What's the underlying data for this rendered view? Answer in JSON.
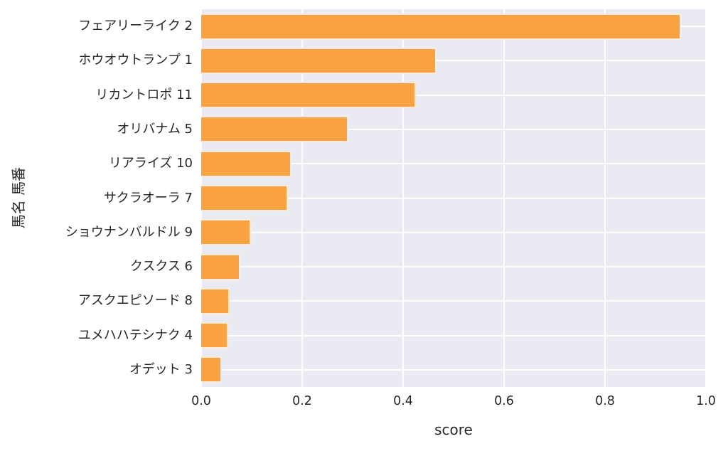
{
  "chart_data": {
    "type": "bar",
    "orientation": "horizontal",
    "title": "",
    "xlabel": "score",
    "ylabel": "馬名 馬番",
    "xlim": [
      0.0,
      1.0
    ],
    "xtick_labels": [
      "0.0",
      "0.2",
      "0.4",
      "0.6",
      "0.8",
      "1.0"
    ],
    "xticks": [
      0.0,
      0.2,
      0.4,
      0.6,
      0.8,
      1.0
    ],
    "categories": [
      "フェアリーライク 2",
      "ホウオウトランプ 1",
      "リカントロポ 11",
      "オリバナム 5",
      "リアライズ 10",
      "サクラオーラ 7",
      "ショウナンバルドル 9",
      "クスクス 6",
      "アスクエピソード 8",
      "ユメハハテシナク 4",
      "オデット 3"
    ],
    "values": [
      0.95,
      0.466,
      0.425,
      0.291,
      0.179,
      0.172,
      0.099,
      0.078,
      0.056,
      0.053,
      0.041
    ],
    "grid": true,
    "legend_position": "none",
    "colors": {
      "bar": "#f9a242",
      "plot_background": "#eaeaf2",
      "gridline": "#ffffff",
      "text": "#262626",
      "figure_background": "#ffffff"
    }
  }
}
